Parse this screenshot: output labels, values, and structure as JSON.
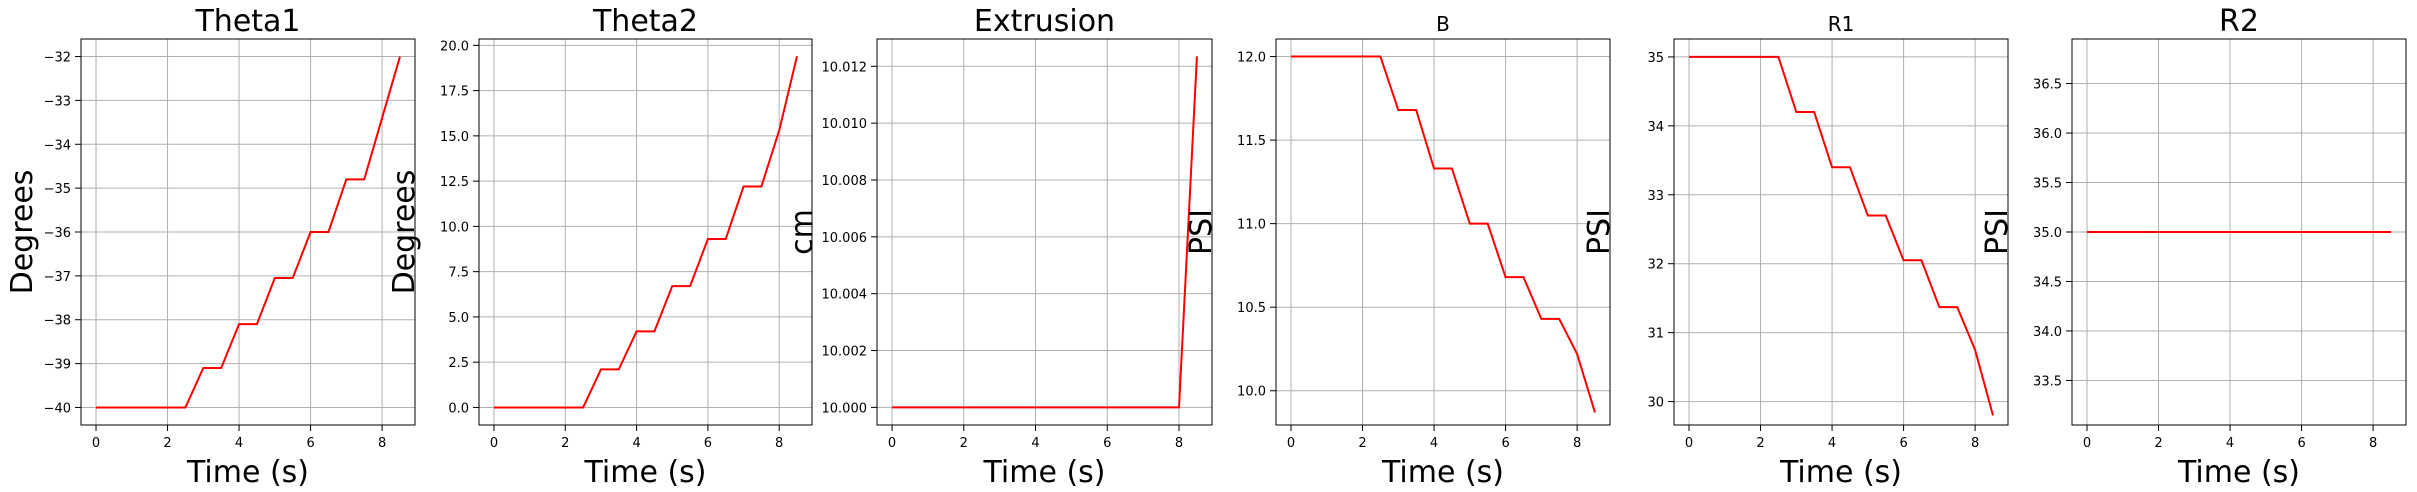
{
  "figure": {
    "line_color": "#ff0000",
    "grid_color": "#b0b0b0"
  },
  "chart_data": [
    {
      "type": "line",
      "title": "Theta1",
      "xlabel": "Time (s)",
      "ylabel": "Degrees",
      "grid": true,
      "xlim": [
        -0.42,
        8.92
      ],
      "ylim": [
        -40.4,
        -31.6
      ],
      "xticks": [
        0,
        2,
        4,
        6,
        8
      ],
      "yticks": [
        -40,
        -39,
        -38,
        -37,
        -36,
        -35,
        -34,
        -33,
        -32
      ],
      "series": [
        {
          "x": [
            0,
            2.5,
            3,
            3.5,
            4,
            4.5,
            5,
            5.5,
            6,
            6.5,
            7,
            7.5,
            8,
            8.5
          ],
          "y": [
            -40,
            -40,
            -39.1,
            -39.1,
            -38.1,
            -38.1,
            -37.05,
            -37.05,
            -36,
            -36,
            -34.8,
            -34.8,
            -33.4,
            -32.0
          ]
        }
      ]
    },
    {
      "type": "line",
      "title": "Theta2",
      "xlabel": "Time (s)",
      "ylabel": "Degrees",
      "grid": true,
      "xlim": [
        -0.42,
        8.92
      ],
      "ylim": [
        -0.97,
        20.35
      ],
      "xticks": [
        0,
        2,
        4,
        6,
        8
      ],
      "yticks": [
        0.0,
        2.5,
        5.0,
        7.5,
        10.0,
        12.5,
        15.0,
        17.5,
        20.0
      ],
      "ytick_labels": [
        "0.0",
        "2.5",
        "5.0",
        "7.5",
        "10.0",
        "12.5",
        "15.0",
        "17.5",
        "20.0"
      ],
      "series": [
        {
          "x": [
            0,
            2.5,
            3,
            3.5,
            4,
            4.5,
            5,
            5.5,
            6,
            6.5,
            7,
            7.5,
            8,
            8.5
          ],
          "y": [
            0,
            0,
            2.1,
            2.1,
            4.2,
            4.2,
            6.7,
            6.7,
            9.3,
            9.3,
            12.2,
            12.2,
            15.3,
            19.4
          ]
        }
      ]
    },
    {
      "type": "line",
      "title": "Extrusion",
      "xlabel": "Time (s)",
      "ylabel": "cm",
      "grid": true,
      "xlim": [
        -0.42,
        8.92
      ],
      "ylim": [
        9.99938,
        10.01296
      ],
      "xticks": [
        0,
        2,
        4,
        6,
        8
      ],
      "yticks": [
        10.0,
        10.002,
        10.004,
        10.006,
        10.008,
        10.01,
        10.012
      ],
      "ytick_labels": [
        "10.000",
        "10.002",
        "10.004",
        "10.006",
        "10.008",
        "10.010",
        "10.012"
      ],
      "series": [
        {
          "x": [
            0,
            8.0,
            8.5
          ],
          "y": [
            10.0,
            10.0,
            10.01235
          ]
        }
      ]
    },
    {
      "type": "line",
      "title": "B",
      "xlabel": "Time (s)",
      "ylabel": "PSI",
      "grid": true,
      "xlim": [
        -0.42,
        8.92
      ],
      "ylim": [
        9.795,
        12.105
      ],
      "xticks": [
        0,
        2,
        4,
        6,
        8
      ],
      "yticks": [
        10.0,
        10.5,
        11.0,
        11.5,
        12.0
      ],
      "ytick_labels": [
        "10.0",
        "10.5",
        "11.0",
        "11.5",
        "12.0"
      ],
      "series": [
        {
          "x": [
            0,
            2.5,
            3,
            3.5,
            4,
            4.5,
            5,
            5.5,
            6,
            6.5,
            7,
            7.5,
            8,
            8.5
          ],
          "y": [
            12.0,
            12.0,
            11.68,
            11.68,
            11.33,
            11.33,
            11.0,
            11.0,
            10.68,
            10.68,
            10.43,
            10.43,
            10.22,
            9.87
          ]
        }
      ]
    },
    {
      "type": "line",
      "title": "R1",
      "xlabel": "Time (s)",
      "ylabel": "PSI",
      "grid": true,
      "xlim": [
        -0.42,
        8.92
      ],
      "ylim": [
        29.66,
        35.26
      ],
      "xticks": [
        0,
        2,
        4,
        6,
        8
      ],
      "yticks": [
        30,
        31,
        32,
        33,
        34,
        35
      ],
      "series": [
        {
          "x": [
            0,
            2.5,
            3,
            3.5,
            4,
            4.5,
            5,
            5.5,
            6,
            6.5,
            7,
            7.5,
            8,
            8.5
          ],
          "y": [
            35.0,
            35.0,
            34.2,
            34.2,
            33.4,
            33.4,
            32.7,
            32.7,
            32.05,
            32.05,
            31.37,
            31.37,
            30.75,
            29.8
          ]
        }
      ]
    },
    {
      "type": "line",
      "title": "R2",
      "xlabel": "Time (s)",
      "ylabel": "PSI",
      "grid": true,
      "xlim": [
        -0.42,
        8.92
      ],
      "ylim": [
        33.05,
        36.95
      ],
      "xticks": [
        0,
        2,
        4,
        6,
        8
      ],
      "yticks": [
        33.5,
        34.0,
        34.5,
        35.0,
        35.5,
        36.0,
        36.5
      ],
      "ytick_labels": [
        "33.5",
        "34.0",
        "34.5",
        "35.0",
        "35.5",
        "36.0",
        "36.5"
      ],
      "series": [
        {
          "x": [
            0,
            8.5
          ],
          "y": [
            35.0,
            35.0
          ]
        }
      ]
    }
  ]
}
